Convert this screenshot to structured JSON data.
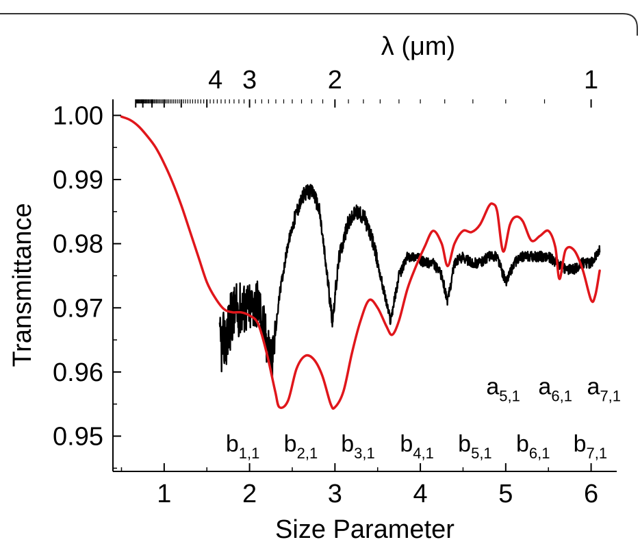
{
  "chart_data": {
    "type": "line",
    "title": "",
    "xlabel": "Size Parameter",
    "ylabel": "Transmittance",
    "top_axis_label": "λ (μm)",
    "xlim": [
      0.4,
      6.3
    ],
    "ylim": [
      0.9445,
      1.0025
    ],
    "x_ticks": [
      1,
      2,
      3,
      4,
      5,
      6
    ],
    "x_tick_labels": [
      "1",
      "2",
      "3",
      "4",
      "5",
      "6"
    ],
    "y_ticks": [
      0.95,
      0.96,
      0.97,
      0.98,
      0.99,
      1.0
    ],
    "y_tick_labels": [
      "0.95",
      "0.96",
      "0.97",
      "0.98",
      "0.99",
      "1.00"
    ],
    "top_ticks": [
      {
        "x": 1.6,
        "label": "4"
      },
      {
        "x": 2.0,
        "label": "3"
      },
      {
        "x": 3.0,
        "label": "2"
      },
      {
        "x": 6.0,
        "label": "1"
      }
    ],
    "grid": false,
    "legend": "none",
    "colors": {
      "measured": "#000000",
      "calculated": "#e0161b"
    },
    "series": [
      {
        "color": "#000000",
        "style": "noisy",
        "x": [
          1.65,
          1.72,
          1.8,
          1.9,
          2.0,
          2.1,
          2.2,
          2.27,
          2.35,
          2.45,
          2.55,
          2.65,
          2.75,
          2.82,
          2.9,
          2.97,
          3.05,
          3.15,
          3.25,
          3.35,
          3.45,
          3.55,
          3.65,
          3.75,
          3.85,
          3.95,
          4.05,
          4.15,
          4.25,
          4.32,
          4.4,
          4.5,
          4.6,
          4.7,
          4.8,
          4.9,
          5.0,
          5.1,
          5.2,
          5.3,
          5.4,
          5.5,
          5.6,
          5.7,
          5.8,
          5.9,
          6.0,
          6.1
        ],
        "y": [
          0.964,
          0.965,
          0.969,
          0.97,
          0.97,
          0.971,
          0.965,
          0.962,
          0.972,
          0.98,
          0.985,
          0.988,
          0.988,
          0.985,
          0.976,
          0.968,
          0.978,
          0.983,
          0.985,
          0.984,
          0.98,
          0.974,
          0.968,
          0.975,
          0.978,
          0.978,
          0.977,
          0.977,
          0.975,
          0.971,
          0.977,
          0.978,
          0.977,
          0.977,
          0.978,
          0.978,
          0.974,
          0.977,
          0.978,
          0.978,
          0.978,
          0.978,
          0.977,
          0.976,
          0.976,
          0.977,
          0.977,
          0.979
        ]
      },
      {
        "color": "#e0161b",
        "style": "smooth",
        "x": [
          0.5,
          0.6,
          0.7,
          0.8,
          0.9,
          1.0,
          1.1,
          1.2,
          1.3,
          1.4,
          1.5,
          1.6,
          1.7,
          1.8,
          1.9,
          2.0,
          2.1,
          2.2,
          2.3,
          2.35,
          2.45,
          2.55,
          2.65,
          2.75,
          2.85,
          2.95,
          3.0,
          3.1,
          3.2,
          3.3,
          3.4,
          3.5,
          3.6,
          3.67,
          3.75,
          3.85,
          3.95,
          4.05,
          4.15,
          4.25,
          4.32,
          4.4,
          4.5,
          4.6,
          4.7,
          4.8,
          4.85,
          4.9,
          4.97,
          5.05,
          5.12,
          5.2,
          5.3,
          5.4,
          5.5,
          5.58,
          5.63,
          5.7,
          5.8,
          5.9,
          6.0,
          6.05,
          6.1
        ],
        "y": [
          0.9998,
          0.9993,
          0.9983,
          0.9968,
          0.995,
          0.9925,
          0.9895,
          0.986,
          0.982,
          0.978,
          0.974,
          0.9715,
          0.9698,
          0.9693,
          0.9693,
          0.9688,
          0.9675,
          0.963,
          0.957,
          0.9545,
          0.9555,
          0.9605,
          0.9625,
          0.962,
          0.9595,
          0.955,
          0.9545,
          0.957,
          0.963,
          0.968,
          0.9712,
          0.97,
          0.9672,
          0.9658,
          0.968,
          0.973,
          0.9765,
          0.9795,
          0.982,
          0.98,
          0.9765,
          0.98,
          0.982,
          0.9818,
          0.983,
          0.9858,
          0.9862,
          0.985,
          0.9788,
          0.983,
          0.9842,
          0.9835,
          0.9805,
          0.9812,
          0.982,
          0.9795,
          0.9745,
          0.979,
          0.979,
          0.976,
          0.9712,
          0.972,
          0.9758
        ]
      }
    ],
    "annotations": [
      {
        "x": 1.92,
        "y": 0.9476,
        "main": "b",
        "sub": "1,1"
      },
      {
        "x": 2.6,
        "y": 0.9476,
        "main": "b",
        "sub": "2,1"
      },
      {
        "x": 3.27,
        "y": 0.9476,
        "main": "b",
        "sub": "3,1"
      },
      {
        "x": 3.96,
        "y": 0.9476,
        "main": "b",
        "sub": "4,1"
      },
      {
        "x": 4.64,
        "y": 0.9476,
        "main": "b",
        "sub": "5,1"
      },
      {
        "x": 5.32,
        "y": 0.9476,
        "main": "b",
        "sub": "6,1"
      },
      {
        "x": 5.99,
        "y": 0.9476,
        "main": "b",
        "sub": "7,1"
      },
      {
        "x": 4.97,
        "y": 0.9565,
        "main": "a",
        "sub": "5,1"
      },
      {
        "x": 5.58,
        "y": 0.9565,
        "main": "a",
        "sub": "6,1"
      },
      {
        "x": 6.15,
        "y": 0.9565,
        "main": "a",
        "sub": "7,1"
      }
    ]
  }
}
